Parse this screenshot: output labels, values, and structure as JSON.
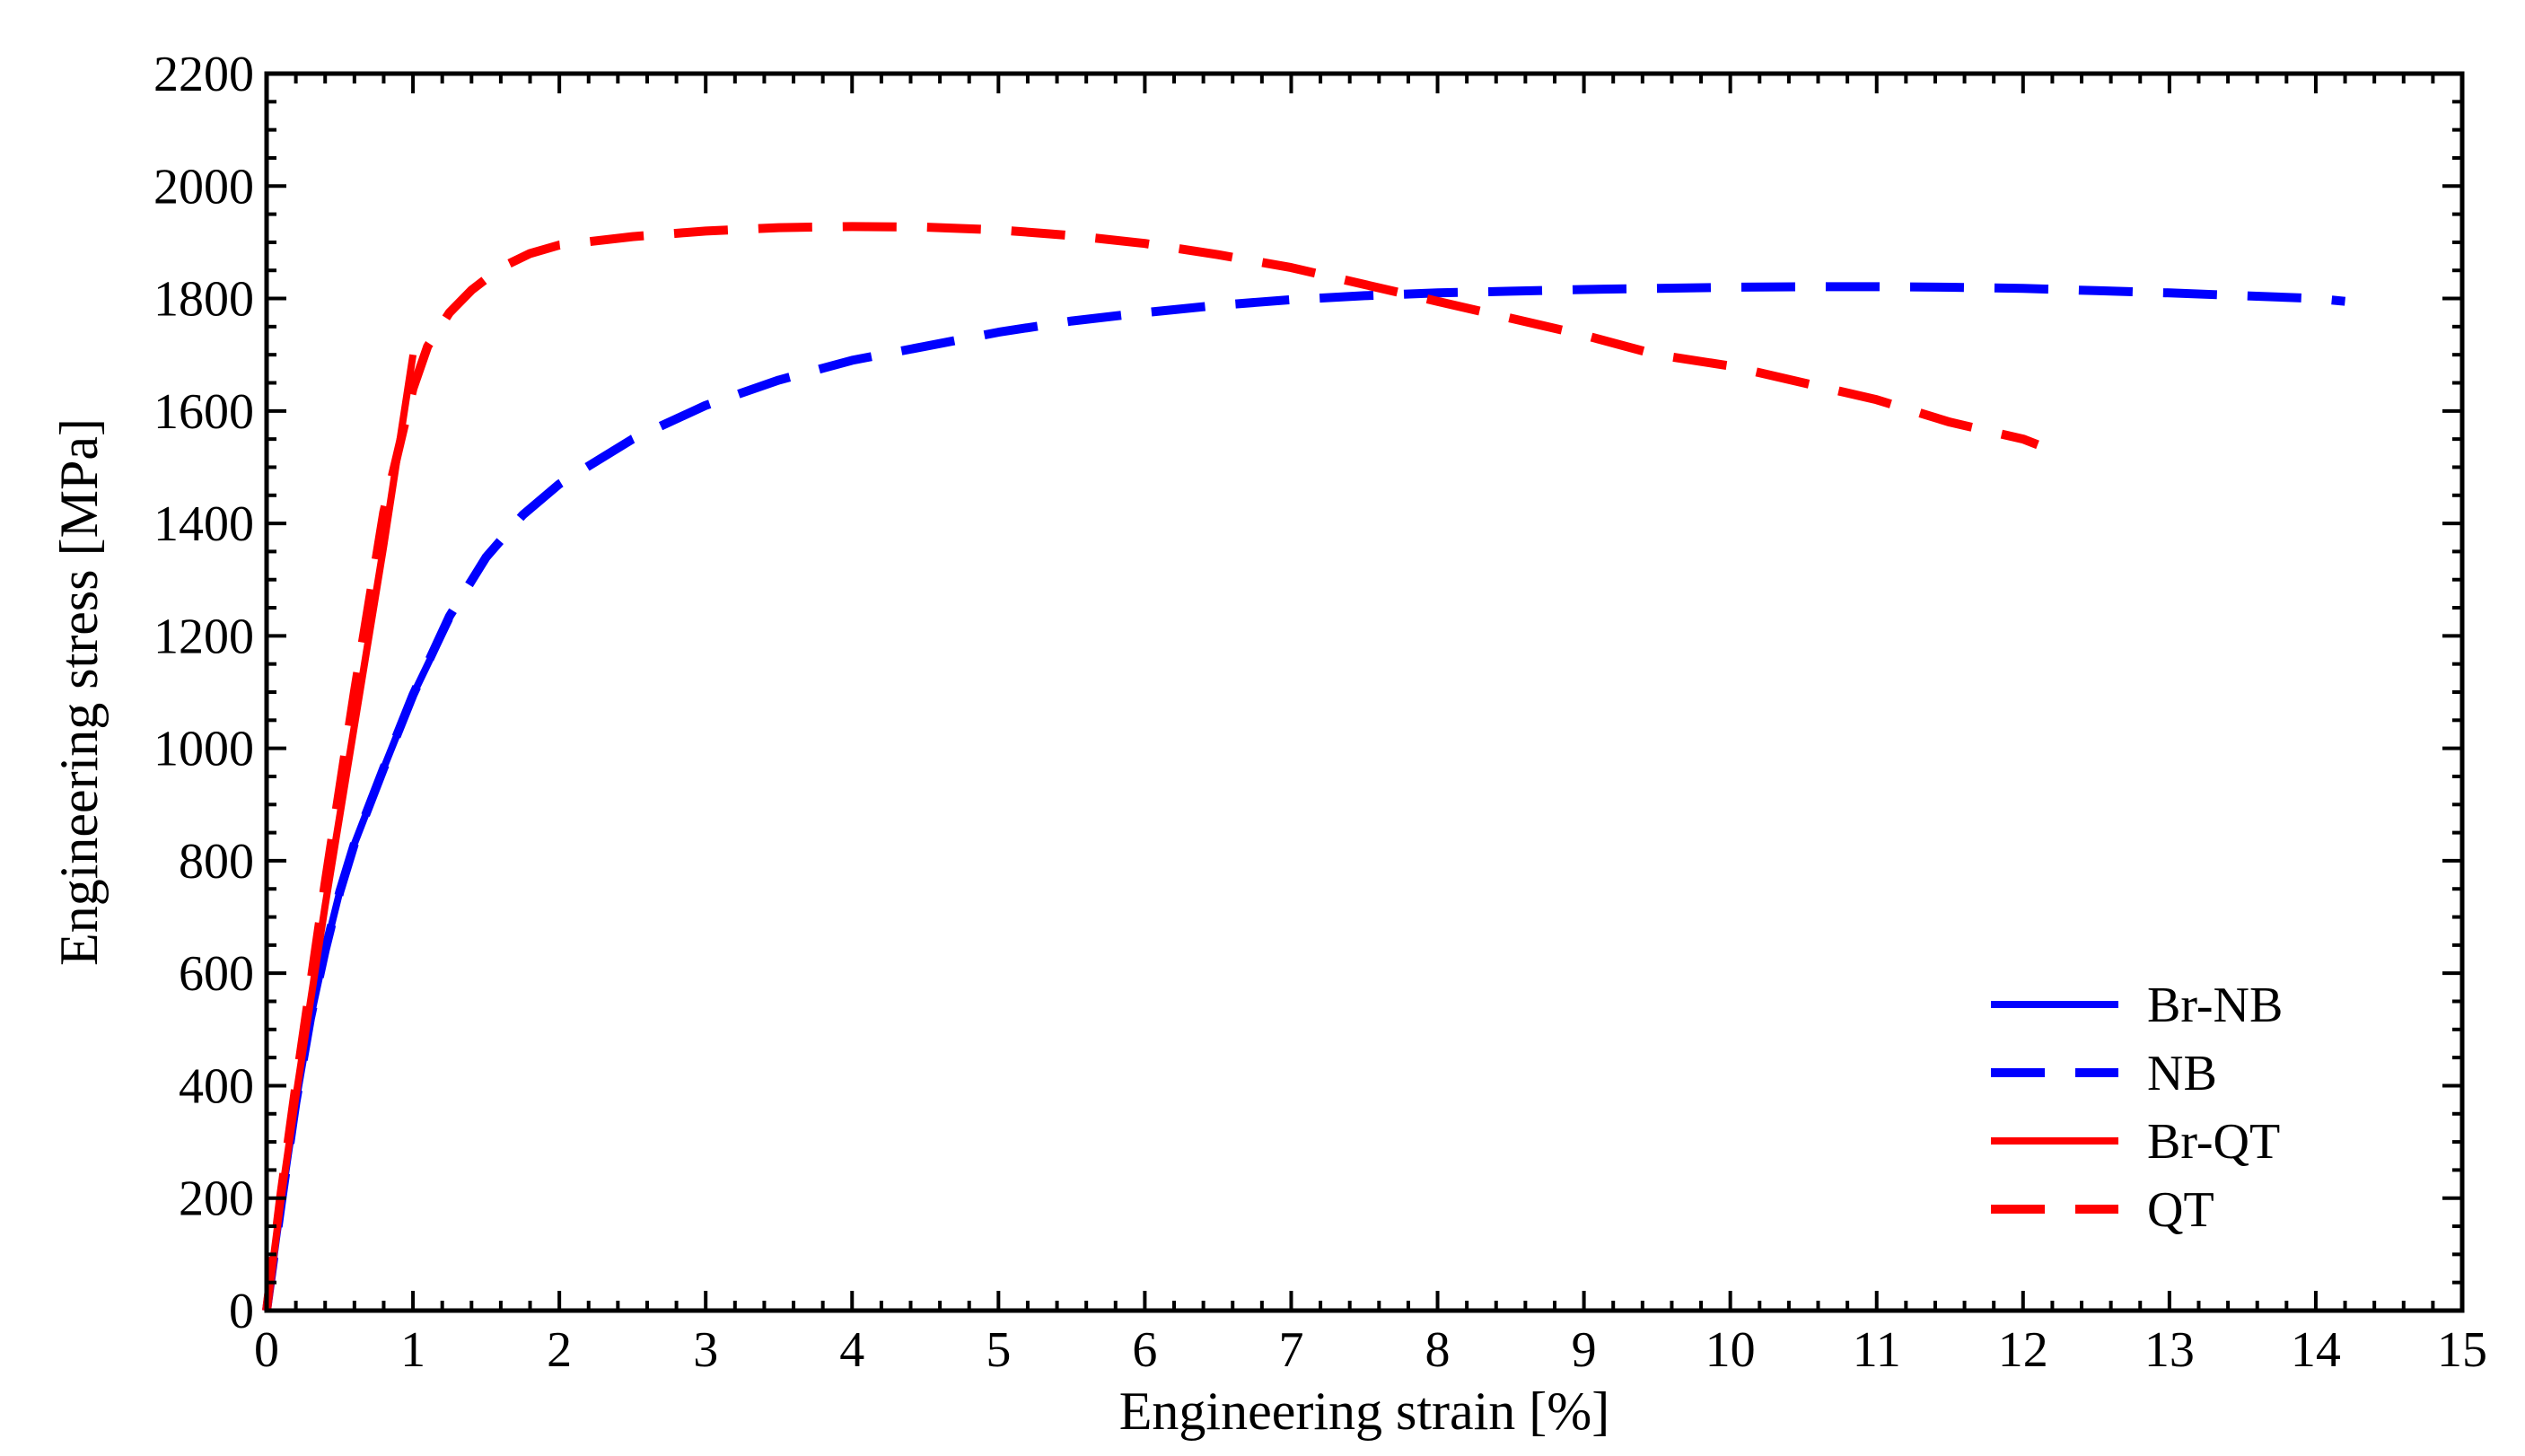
{
  "chart_data": {
    "type": "line",
    "title": "",
    "xlabel": "Engineering strain [%]",
    "ylabel": "Engineering stress [MPa]",
    "xlim": [
      0,
      15
    ],
    "ylim": [
      0,
      2200
    ],
    "xticks": [
      0,
      1,
      2,
      3,
      4,
      5,
      6,
      7,
      8,
      9,
      10,
      11,
      12,
      13,
      14,
      15
    ],
    "yticks": [
      0,
      200,
      400,
      600,
      800,
      1000,
      1200,
      1400,
      1600,
      1800,
      2000,
      2200
    ],
    "grid": false,
    "legend_position": "bottom-right",
    "series": [
      {
        "name": "Br-NB",
        "color": "#0000ff",
        "style": "solid",
        "x": [
          0,
          0.1,
          0.2,
          0.3,
          0.4,
          0.5,
          0.6,
          0.8,
          1.0,
          1.25
        ],
        "y": [
          0,
          190,
          370,
          520,
          640,
          745,
          830,
          965,
          1095,
          1230
        ]
      },
      {
        "name": "NB",
        "color": "#0000ff",
        "style": "dashed",
        "x": [
          0,
          0.1,
          0.2,
          0.3,
          0.4,
          0.5,
          0.6,
          0.8,
          1.0,
          1.25,
          1.5,
          1.75,
          2.0,
          2.5,
          3.0,
          3.5,
          4.0,
          4.5,
          5.0,
          5.5,
          6.0,
          6.5,
          7.0,
          7.5,
          8.0,
          8.5,
          9.0,
          9.5,
          10.0,
          10.5,
          11.0,
          11.5,
          12.0,
          12.5,
          13.0,
          13.5,
          14.0,
          14.2
        ],
        "y": [
          0,
          190,
          370,
          520,
          640,
          745,
          830,
          965,
          1095,
          1235,
          1340,
          1415,
          1470,
          1550,
          1610,
          1655,
          1690,
          1715,
          1740,
          1760,
          1775,
          1788,
          1798,
          1805,
          1810,
          1813,
          1816,
          1818,
          1820,
          1821,
          1821,
          1820,
          1818,
          1814,
          1810,
          1805,
          1800,
          1795
        ]
      },
      {
        "name": "Br-QT",
        "color": "#ff0000",
        "style": "solid",
        "x": [
          0,
          0.1,
          0.2,
          0.4,
          0.6,
          0.8,
          1.0
        ],
        "y": [
          0,
          200,
          380,
          720,
          1040,
          1360,
          1700
        ]
      },
      {
        "name": "QT",
        "color": "#ff0000",
        "style": "dashed",
        "x": [
          0,
          0.1,
          0.2,
          0.4,
          0.6,
          0.8,
          1.0,
          1.1,
          1.25,
          1.4,
          1.6,
          1.8,
          2.0,
          2.5,
          3.0,
          3.5,
          4.0,
          4.5,
          5.0,
          5.5,
          6.0,
          6.5,
          7.0,
          7.5,
          8.0,
          8.5,
          9.0,
          9.5,
          10.0,
          10.5,
          11.0,
          11.5,
          12.0,
          12.1
        ],
        "y": [
          0,
          210,
          400,
          760,
          1100,
          1420,
          1640,
          1715,
          1775,
          1815,
          1855,
          1880,
          1895,
          1910,
          1920,
          1926,
          1928,
          1927,
          1922,
          1912,
          1898,
          1878,
          1855,
          1825,
          1795,
          1765,
          1735,
          1700,
          1680,
          1650,
          1620,
          1580,
          1550,
          1540
        ]
      }
    ]
  }
}
